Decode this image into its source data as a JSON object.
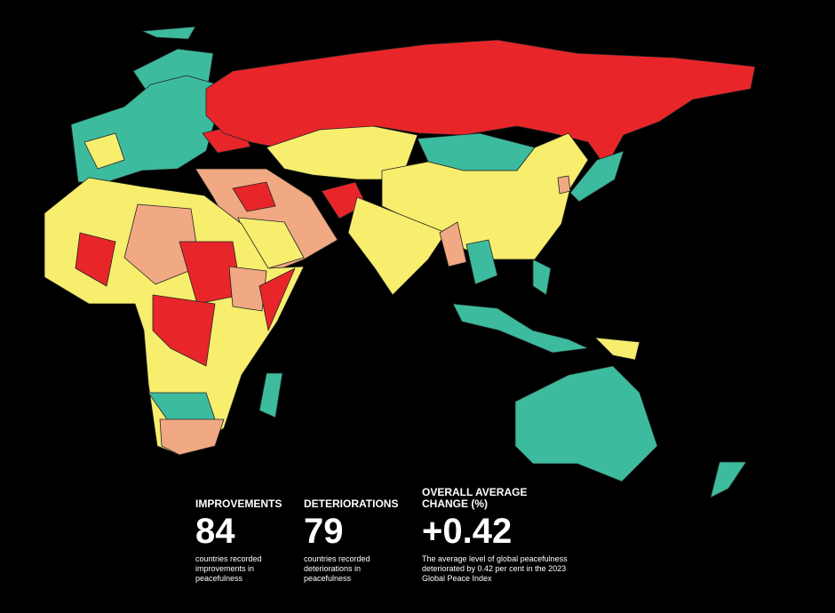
{
  "stats": [
    {
      "label": "IMPROVEMENTS",
      "value": "84",
      "description": "countries recorded improvements in peacefulness"
    },
    {
      "label": "DETERIORATIONS",
      "value": "79",
      "description": "countries recorded deteriorations in peacefulness"
    },
    {
      "label": "OVERALL AVERAGE CHANGE (%)",
      "value": "+0.42",
      "description": "The average level of global peacefulness deteriorated by 0.42 per cent in the 2023 Global Peace Index"
    }
  ]
}
